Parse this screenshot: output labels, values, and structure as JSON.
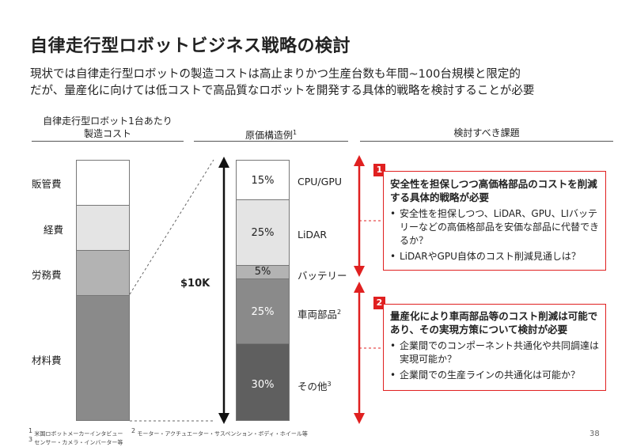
{
  "title": "自律走行型ロボットビジネス戦略の検討",
  "subtitle_lines": [
    "現状では自律走行型ロボットの製造コストは高止まりかつ生産台数も年間~100台規模と限定的",
    "だが、量産化に向けては低コストで高品質なロボットを開発する具体的戦略を検討することが必要"
  ],
  "columns": {
    "left_header_1": "自律走行型ロボット1台あたり",
    "left_header_2": "製造コスト",
    "mid_header": "原価構造例",
    "mid_header_sup": "1",
    "right_header": "検討すべき課題"
  },
  "left_bar_labels": [
    "販管費",
    "経費",
    "労務費",
    "材料費"
  ],
  "total_label": "$10K",
  "cost_structure": [
    {
      "label": "CPU/GPU",
      "pct": "15%",
      "sup": ""
    },
    {
      "label": "LiDAR",
      "pct": "25%",
      "sup": ""
    },
    {
      "label": "バッテリー",
      "pct": "5%",
      "sup": ""
    },
    {
      "label": "車両部品",
      "pct": "25%",
      "sup": "2"
    },
    {
      "label": "その他",
      "pct": "30%",
      "sup": "3"
    }
  ],
  "issues": [
    {
      "num": "1",
      "heading": "安全性を担保しつつ高価格部品のコストを削減する具体的戦略が必要",
      "bullets": [
        "安全性を担保しつつ、LiDAR、GPU、LIバッテリーなどの高価格部品を安価な部品に代替できるか？",
        "LiDARやGPU自体のコスト削減見通しは？"
      ]
    },
    {
      "num": "2",
      "heading": "量産化により車両部品等のコスト削減は可能であり、その実現方策について検討が必要",
      "bullets": [
        "企業間でのコンポーネント共通化や共同調達は実現可能か？",
        "企業間での生産ラインの共通化は可能か？"
      ]
    }
  ],
  "footnotes": {
    "f1": "米国ロボットメーカーインタビュー",
    "f2": "モーター・アクチュエーター・サスペンション・ボディ・ホイール等",
    "f3": "センサー・カメラ・インバーター等"
  },
  "page_number": "38",
  "colors": {
    "accent": "#e02020",
    "seg1": "#ffffff",
    "seg2": "#e4e4e4",
    "seg3": "#b3b3b3",
    "seg4": "#8a8a8a",
    "seg5": "#5f5f5f"
  }
}
